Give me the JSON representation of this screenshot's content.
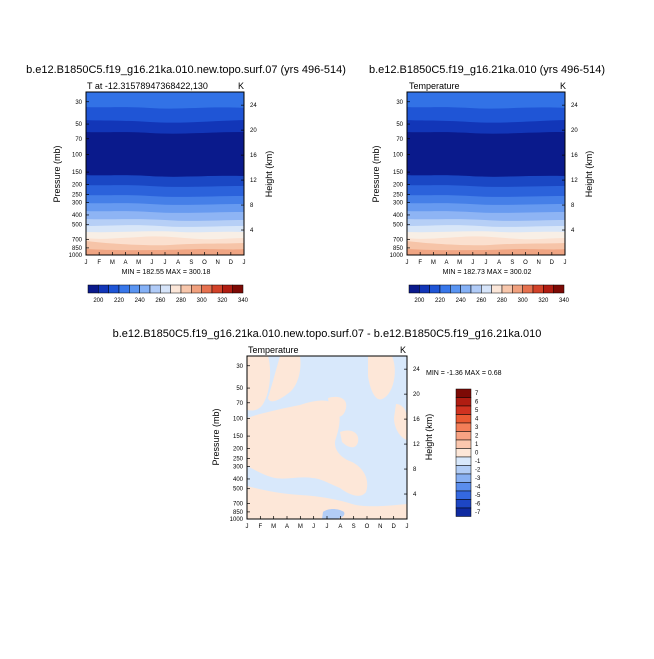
{
  "chart_data": [
    {
      "type": "contour",
      "panel": "top-left",
      "title": "b.e12.B1850C5.f19_g16.21ka.010.new.topo.surf.07 (yrs 496-514)",
      "subtitle_left": "T at -12.31578947368422,130",
      "subtitle_right": "K",
      "ylabel": "Pressure (mb)",
      "y2label": "Height (km)",
      "x_ticks": [
        "J",
        "F",
        "M",
        "A",
        "M",
        "J",
        "J",
        "A",
        "S",
        "O",
        "N",
        "D",
        "J"
      ],
      "y_ticks": [
        "30",
        "50",
        "70",
        "100",
        "150",
        "200",
        "250",
        "300",
        "400",
        "500",
        "700",
        "850",
        "1000"
      ],
      "y2_ticks": [
        "24",
        "20",
        "16",
        "12",
        "8",
        "4"
      ],
      "minmax": "MIN = 182.55 MAX = 300.18",
      "min": 182.55,
      "max": 300.18,
      "colorbar_labels": [
        "200",
        "220",
        "240",
        "260",
        "280",
        "300",
        "320",
        "340"
      ]
    },
    {
      "type": "contour",
      "panel": "top-right",
      "title": "b.e12.B1850C5.f19_g16.21ka.010 (yrs 496-514)",
      "subtitle_left": "Temperature",
      "subtitle_right": "K",
      "ylabel": "Pressure (mb)",
      "y2label": "Height (km)",
      "x_ticks": [
        "J",
        "F",
        "M",
        "A",
        "M",
        "J",
        "J",
        "A",
        "S",
        "O",
        "N",
        "D",
        "J"
      ],
      "y_ticks": [
        "30",
        "50",
        "70",
        "100",
        "150",
        "200",
        "250",
        "300",
        "400",
        "500",
        "700",
        "850",
        "1000"
      ],
      "y2_ticks": [
        "24",
        "20",
        "16",
        "12",
        "8",
        "4"
      ],
      "minmax": "MIN = 182.73 MAX = 300.02",
      "min": 182.73,
      "max": 300.02,
      "colorbar_labels": [
        "200",
        "220",
        "240",
        "260",
        "280",
        "300",
        "320",
        "340"
      ]
    },
    {
      "type": "contour",
      "panel": "bottom",
      "title": "b.e12.B1850C5.f19_g16.21ka.010.new.topo.surf.07 - b.e12.B1850C5.f19_g16.21ka.010",
      "subtitle_left": "Temperature",
      "subtitle_right": "K",
      "ylabel": "Pressure (mb)",
      "y2label": "Height (km)",
      "x_ticks": [
        "J",
        "F",
        "M",
        "A",
        "M",
        "J",
        "J",
        "A",
        "S",
        "O",
        "N",
        "D",
        "J"
      ],
      "y_ticks": [
        "30",
        "50",
        "70",
        "100",
        "150",
        "200",
        "250",
        "300",
        "400",
        "500",
        "700",
        "850",
        "1000"
      ],
      "y2_ticks": [
        "24",
        "20",
        "16",
        "12",
        "8",
        "4"
      ],
      "minmax_label": "MIN =  -1.36 MAX =   0.68",
      "min": -1.36,
      "max": 0.68,
      "colorbar_labels": [
        "7",
        "6",
        "5",
        "4",
        "3",
        "2",
        "1",
        "0",
        "-1",
        "-2",
        "-3",
        "-4",
        "-5",
        "-6",
        "-7"
      ]
    }
  ],
  "colors": {
    "temp_colorbar": [
      "#0a1a8c",
      "#1236b8",
      "#1f55d6",
      "#3877ea",
      "#5a95f2",
      "#85b1f6",
      "#b0cbf7",
      "#d6e4f9",
      "#fbe6d8",
      "#f7c6ab",
      "#f0a07e",
      "#e6714f",
      "#d24229",
      "#b01d12",
      "#7d0a05"
    ],
    "diff_colorbar": [
      "#7d0a05",
      "#b01d12",
      "#d03220",
      "#ea5a33",
      "#f47e58",
      "#f8a383",
      "#fbc7ae",
      "#fde7d8",
      "#d8e8fb",
      "#b2cdf6",
      "#88b0f2",
      "#5a8ded",
      "#3468e1",
      "#1d46c4",
      "#0f2aa0"
    ]
  }
}
